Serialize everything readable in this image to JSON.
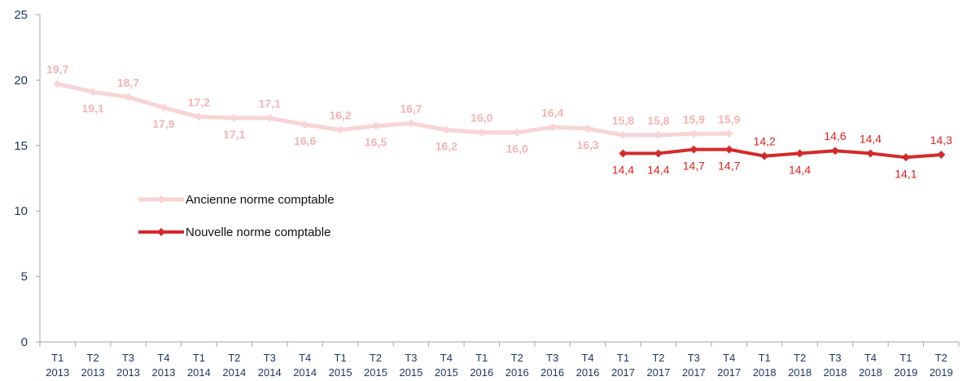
{
  "chart_data": {
    "type": "line",
    "title": "",
    "xlabel": "",
    "ylabel": "",
    "ylim": [
      0,
      25
    ],
    "yticks": [
      0,
      5,
      10,
      15,
      20,
      25
    ],
    "grid": false,
    "legend_position": "left-middle",
    "categories": [
      [
        "T1",
        "2013"
      ],
      [
        "T2",
        "2013"
      ],
      [
        "T3",
        "2013"
      ],
      [
        "T4",
        "2013"
      ],
      [
        "T1",
        "2014"
      ],
      [
        "T2",
        "2014"
      ],
      [
        "T3",
        "2014"
      ],
      [
        "T4",
        "2014"
      ],
      [
        "T1",
        "2015"
      ],
      [
        "T2",
        "2015"
      ],
      [
        "T3",
        "2015"
      ],
      [
        "T4",
        "2015"
      ],
      [
        "T1",
        "2016"
      ],
      [
        "T2",
        "2016"
      ],
      [
        "T3",
        "2016"
      ],
      [
        "T4",
        "2016"
      ],
      [
        "T1",
        "2017"
      ],
      [
        "T2",
        "2017"
      ],
      [
        "T3",
        "2017"
      ],
      [
        "T4",
        "2017"
      ],
      [
        "T1",
        "2018"
      ],
      [
        "T2",
        "2018"
      ],
      [
        "T3",
        "2018"
      ],
      [
        "T4",
        "2018"
      ],
      [
        "T1",
        "2019"
      ],
      [
        "T2",
        "2019"
      ]
    ],
    "series": [
      {
        "name": "Ancienne norme comptable",
        "color": "#f8d4d4",
        "label_color": "#f4b4b4",
        "values": [
          19.7,
          19.1,
          18.7,
          17.9,
          17.2,
          17.1,
          17.1,
          16.6,
          16.2,
          16.5,
          16.7,
          16.2,
          16.0,
          16.0,
          16.4,
          16.3,
          15.8,
          15.8,
          15.9,
          15.9,
          null,
          null,
          null,
          null,
          null,
          null
        ],
        "labels": [
          "19,7",
          "19,1",
          "18,7",
          "17,9",
          "17,2",
          "17,1",
          "17,1",
          "16,6",
          "16,2",
          "16,5",
          "16,7",
          "16,2",
          "16,0",
          "16,0",
          "16,4",
          "16,3",
          "15,8",
          "15,8",
          "15,9",
          "15,9",
          null,
          null,
          null,
          null,
          null,
          null
        ],
        "label_side": [
          "above",
          "below",
          "above",
          "below",
          "above",
          "below",
          "above",
          "below",
          "above",
          "below",
          "above",
          "below",
          "above",
          "below",
          "above",
          "below",
          "above",
          "above",
          "above",
          "above",
          null,
          null,
          null,
          null,
          null,
          null
        ]
      },
      {
        "name": "Nouvelle norme comptable",
        "color": "#d42a2a",
        "label_color": "#e02020",
        "values": [
          null,
          null,
          null,
          null,
          null,
          null,
          null,
          null,
          null,
          null,
          null,
          null,
          null,
          null,
          null,
          null,
          14.4,
          14.4,
          14.7,
          14.7,
          14.2,
          14.4,
          14.6,
          14.4,
          14.1,
          14.3
        ],
        "labels": [
          null,
          null,
          null,
          null,
          null,
          null,
          null,
          null,
          null,
          null,
          null,
          null,
          null,
          null,
          null,
          null,
          "14,4",
          "14,4",
          "14,7",
          "14,7",
          "14,2",
          "14,4",
          "14,6",
          "14,4",
          "14,1",
          "14,3"
        ],
        "label_side": [
          null,
          null,
          null,
          null,
          null,
          null,
          null,
          null,
          null,
          null,
          null,
          null,
          null,
          null,
          null,
          null,
          "below",
          "below",
          "below",
          "below",
          "above",
          "below",
          "above",
          "above",
          "below",
          "above"
        ]
      }
    ]
  }
}
